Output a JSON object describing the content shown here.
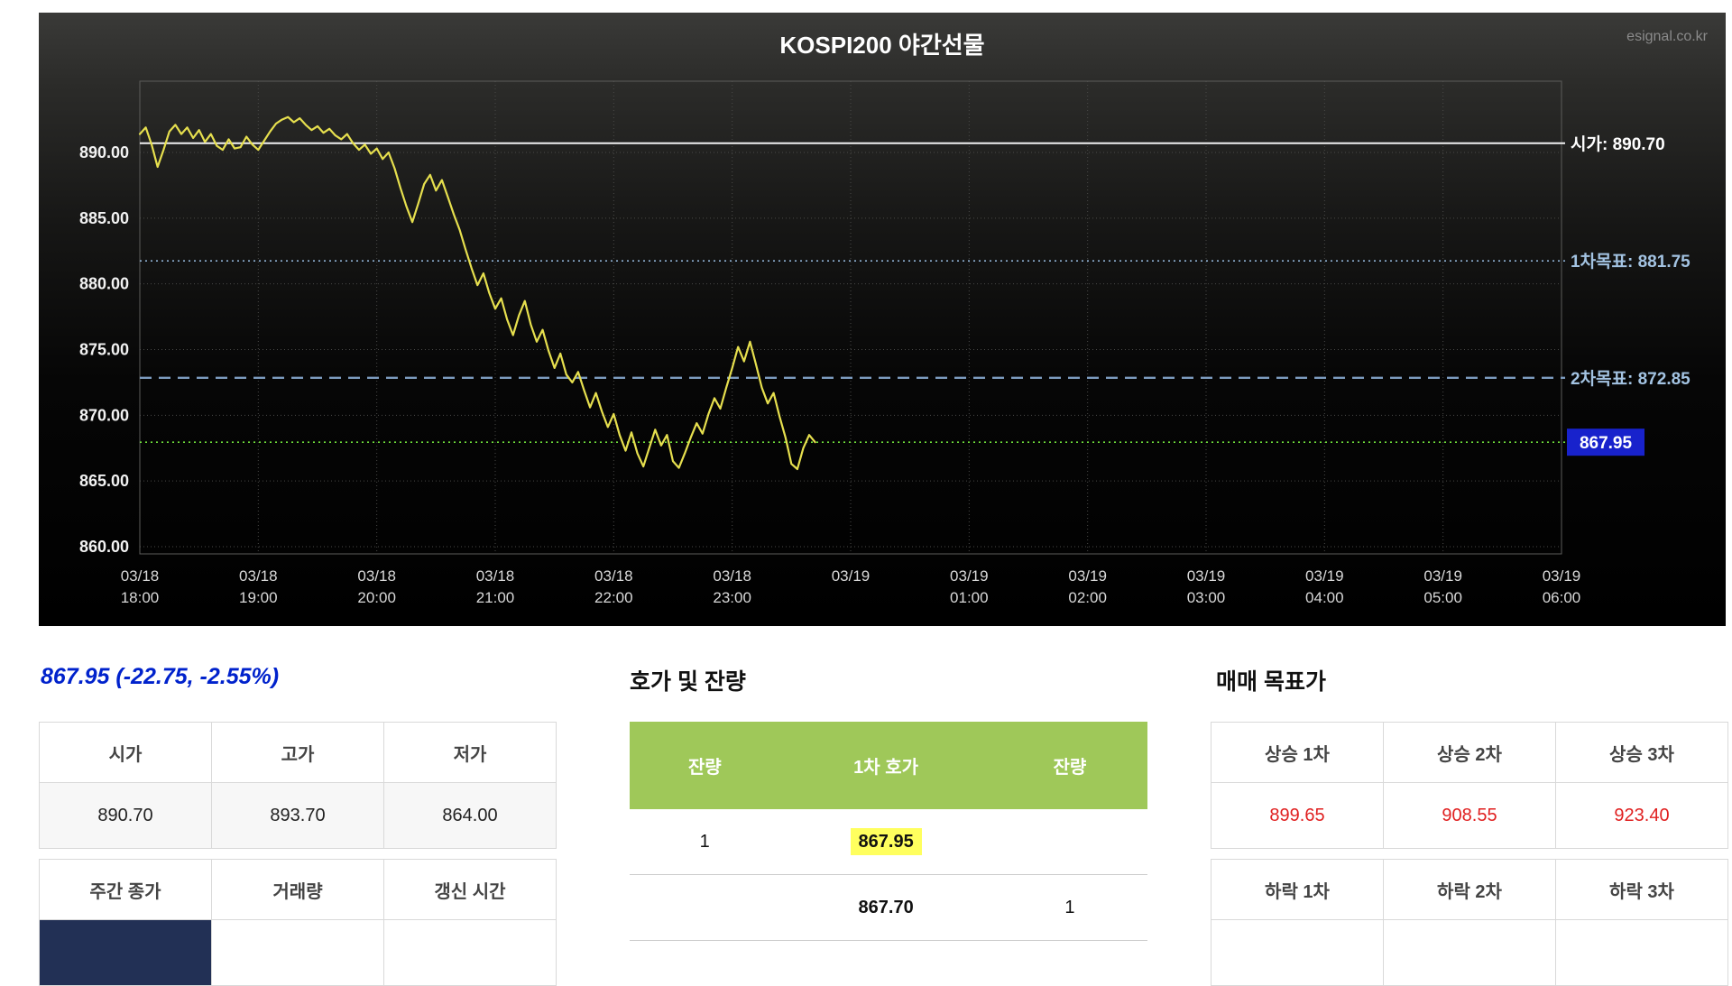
{
  "chart_data": {
    "type": "line",
    "title": "KOSPI200 야간선물",
    "watermark": "esignal.co.kr",
    "ylim": [
      858,
      895.5
    ],
    "yticks": [
      890,
      885,
      880,
      875,
      870,
      865,
      860
    ],
    "ytick_labels": [
      "890.00",
      "885.00",
      "880.00",
      "875.00",
      "870.00",
      "865.00",
      "860.00"
    ],
    "xticks": [
      {
        "date": "03/18",
        "time": "18:00",
        "hour": 18
      },
      {
        "date": "03/18",
        "time": "19:00",
        "hour": 19
      },
      {
        "date": "03/18",
        "time": "20:00",
        "hour": 20
      },
      {
        "date": "03/18",
        "time": "21:00",
        "hour": 21
      },
      {
        "date": "03/18",
        "time": "22:00",
        "hour": 22
      },
      {
        "date": "03/18",
        "time": "23:00",
        "hour": 23
      },
      {
        "date": "03/19",
        "time": "",
        "hour": 24
      },
      {
        "date": "03/19",
        "time": "01:00",
        "hour": 25
      },
      {
        "date": "03/19",
        "time": "02:00",
        "hour": 26
      },
      {
        "date": "03/19",
        "time": "03:00",
        "hour": 27
      },
      {
        "date": "03/19",
        "time": "04:00",
        "hour": 28
      },
      {
        "date": "03/19",
        "time": "05:00",
        "hour": 29
      },
      {
        "date": "03/19",
        "time": "06:00",
        "hour": 30
      }
    ],
    "ref_lines": [
      {
        "label": "시가: 890.70",
        "value": 890.7,
        "style": "solid",
        "color": "#f2f2f2",
        "label_color": "#ffffff"
      },
      {
        "label": "1차목표: 881.75",
        "value": 881.75,
        "style": "dotted",
        "color": "#8fb2d4",
        "label_color": "#a3c3e2"
      },
      {
        "label": "2차목표: 872.85",
        "value": 872.85,
        "style": "dashed",
        "color": "#7d9cc0",
        "label_color": "#a3c3e2"
      },
      {
        "label": "867.95",
        "value": 867.95,
        "style": "dotted",
        "color": "#6ede3a",
        "label_color": "#ffffff",
        "badge": true,
        "badge_color": "#1822cc"
      }
    ],
    "series": [
      {
        "name": "KOSPI200 night futures price",
        "color": "#e6df4e",
        "points": [
          [
            18.0,
            891.4
          ],
          [
            18.05,
            891.9
          ],
          [
            18.1,
            890.6
          ],
          [
            18.15,
            888.9
          ],
          [
            18.2,
            890.2
          ],
          [
            18.25,
            891.6
          ],
          [
            18.3,
            892.1
          ],
          [
            18.35,
            891.4
          ],
          [
            18.4,
            891.9
          ],
          [
            18.45,
            891.1
          ],
          [
            18.5,
            891.7
          ],
          [
            18.55,
            890.8
          ],
          [
            18.6,
            891.4
          ],
          [
            18.65,
            890.5
          ],
          [
            18.7,
            890.2
          ],
          [
            18.75,
            891.0
          ],
          [
            18.8,
            890.3
          ],
          [
            18.85,
            890.4
          ],
          [
            18.9,
            891.2
          ],
          [
            18.95,
            890.6
          ],
          [
            19.0,
            890.2
          ],
          [
            19.05,
            890.9
          ],
          [
            19.1,
            891.6
          ],
          [
            19.15,
            892.2
          ],
          [
            19.2,
            892.5
          ],
          [
            19.25,
            892.7
          ],
          [
            19.3,
            892.3
          ],
          [
            19.35,
            892.6
          ],
          [
            19.4,
            892.1
          ],
          [
            19.45,
            891.7
          ],
          [
            19.5,
            892.0
          ],
          [
            19.55,
            891.5
          ],
          [
            19.6,
            891.8
          ],
          [
            19.65,
            891.3
          ],
          [
            19.7,
            891.0
          ],
          [
            19.75,
            891.4
          ],
          [
            19.8,
            890.7
          ],
          [
            19.85,
            890.2
          ],
          [
            19.9,
            890.6
          ],
          [
            19.95,
            889.9
          ],
          [
            20.0,
            890.3
          ],
          [
            20.05,
            889.5
          ],
          [
            20.1,
            890.0
          ],
          [
            20.15,
            888.8
          ],
          [
            20.2,
            887.3
          ],
          [
            20.25,
            885.9
          ],
          [
            20.3,
            884.7
          ],
          [
            20.35,
            886.1
          ],
          [
            20.4,
            887.6
          ],
          [
            20.45,
            888.3
          ],
          [
            20.5,
            887.1
          ],
          [
            20.55,
            887.9
          ],
          [
            20.6,
            886.6
          ],
          [
            20.65,
            885.3
          ],
          [
            20.7,
            884.1
          ],
          [
            20.75,
            882.6
          ],
          [
            20.8,
            881.2
          ],
          [
            20.85,
            879.9
          ],
          [
            20.9,
            880.8
          ],
          [
            20.95,
            879.3
          ],
          [
            21.0,
            878.1
          ],
          [
            21.05,
            878.9
          ],
          [
            21.1,
            877.3
          ],
          [
            21.15,
            876.1
          ],
          [
            21.2,
            877.6
          ],
          [
            21.25,
            878.7
          ],
          [
            21.3,
            876.9
          ],
          [
            21.35,
            875.6
          ],
          [
            21.4,
            876.5
          ],
          [
            21.45,
            874.9
          ],
          [
            21.5,
            873.6
          ],
          [
            21.55,
            874.7
          ],
          [
            21.6,
            873.1
          ],
          [
            21.65,
            872.5
          ],
          [
            21.7,
            873.3
          ],
          [
            21.75,
            871.9
          ],
          [
            21.8,
            870.6
          ],
          [
            21.85,
            871.7
          ],
          [
            21.9,
            870.3
          ],
          [
            21.95,
            869.1
          ],
          [
            22.0,
            870.1
          ],
          [
            22.05,
            868.5
          ],
          [
            22.1,
            867.3
          ],
          [
            22.15,
            868.7
          ],
          [
            22.2,
            867.1
          ],
          [
            22.25,
            866.1
          ],
          [
            22.3,
            867.5
          ],
          [
            22.35,
            868.9
          ],
          [
            22.4,
            867.7
          ],
          [
            22.45,
            868.5
          ],
          [
            22.5,
            866.5
          ],
          [
            22.55,
            866.0
          ],
          [
            22.6,
            867.1
          ],
          [
            22.65,
            868.3
          ],
          [
            22.7,
            869.4
          ],
          [
            22.75,
            868.6
          ],
          [
            22.8,
            870.1
          ],
          [
            22.85,
            871.3
          ],
          [
            22.9,
            870.5
          ],
          [
            22.95,
            872.1
          ],
          [
            23.0,
            873.6
          ],
          [
            23.05,
            875.2
          ],
          [
            23.1,
            874.1
          ],
          [
            23.15,
            875.6
          ],
          [
            23.2,
            873.9
          ],
          [
            23.25,
            872.1
          ],
          [
            23.3,
            870.9
          ],
          [
            23.35,
            871.7
          ],
          [
            23.4,
            869.9
          ],
          [
            23.45,
            868.3
          ],
          [
            23.5,
            866.3
          ],
          [
            23.55,
            865.9
          ],
          [
            23.6,
            867.5
          ],
          [
            23.65,
            868.5
          ],
          [
            23.7,
            867.95
          ]
        ]
      }
    ]
  },
  "quote": {
    "summary": "867.95 (-22.75, -2.55%)"
  },
  "left": {
    "ohl": {
      "headers": [
        "시가",
        "고가",
        "저가"
      ],
      "values": [
        "890.70",
        "893.70",
        "864.00"
      ]
    },
    "weekly": {
      "headers": [
        "주간 종가",
        "거래량",
        "갱신 시간"
      ],
      "values": [
        "",
        "",
        ""
      ]
    }
  },
  "orderbook": {
    "title": "호가 및 잔량",
    "headers": [
      "잔량",
      "1차 호가",
      "잔량"
    ],
    "rows": [
      {
        "bid_qty": "1",
        "price": "867.95",
        "ask_qty": ""
      },
      {
        "bid_qty": "",
        "price": "867.70",
        "ask_qty": "1"
      }
    ]
  },
  "targets": {
    "title": "매매 목표가",
    "up": {
      "headers": [
        "상승 1차",
        "상승 2차",
        "상승 3차"
      ],
      "values": [
        "899.65",
        "908.55",
        "923.40"
      ]
    },
    "down": {
      "headers": [
        "하락 1차",
        "하락 2차",
        "하락 3차"
      ],
      "values": [
        "",
        "",
        ""
      ]
    }
  }
}
